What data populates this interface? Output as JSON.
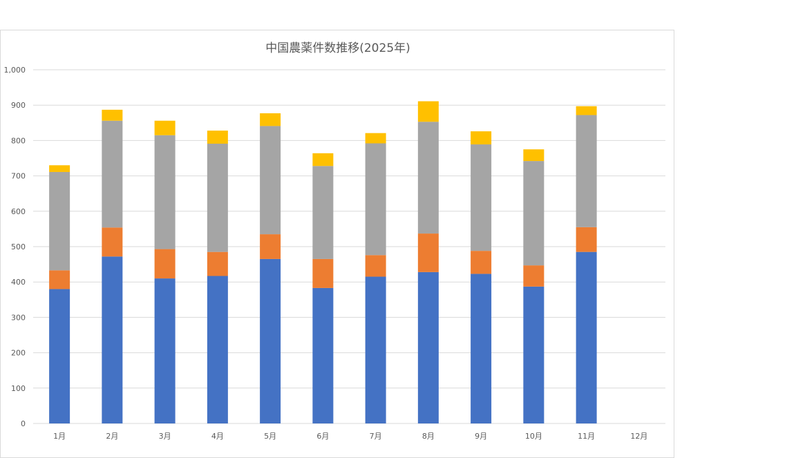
{
  "chart_data": {
    "type": "bar",
    "stacked": true,
    "title": "中国農薬件数推移(2025年)",
    "xlabel": "",
    "ylabel": "",
    "ylim": [
      0,
      1000
    ],
    "yticks": [
      0,
      100,
      200,
      300,
      400,
      500,
      600,
      700,
      800,
      900,
      1000
    ],
    "ytick_labels": [
      "0",
      "100",
      "200",
      "300",
      "400",
      "500",
      "600",
      "700",
      "800",
      "900",
      "1,000"
    ],
    "grid": true,
    "legend": "none",
    "categories": [
      "1月",
      "2月",
      "3月",
      "4月",
      "5月",
      "6月",
      "7月",
      "8月",
      "9月",
      "10月",
      "11月",
      "12月"
    ],
    "series": [
      {
        "color": "#4472c4",
        "values": [
          380,
          472,
          410,
          417,
          465,
          383,
          415,
          428,
          423,
          387,
          485,
          null
        ]
      },
      {
        "color": "#ed7d31",
        "values": [
          53,
          82,
          83,
          68,
          70,
          82,
          61,
          109,
          65,
          60,
          70,
          null
        ]
      },
      {
        "color": "#a5a5a5",
        "values": [
          278,
          302,
          322,
          306,
          306,
          263,
          316,
          316,
          301,
          295,
          317,
          null
        ]
      },
      {
        "color": "#ffc000",
        "values": [
          19,
          31,
          41,
          37,
          36,
          36,
          29,
          58,
          37,
          33,
          25,
          null
        ]
      }
    ]
  }
}
